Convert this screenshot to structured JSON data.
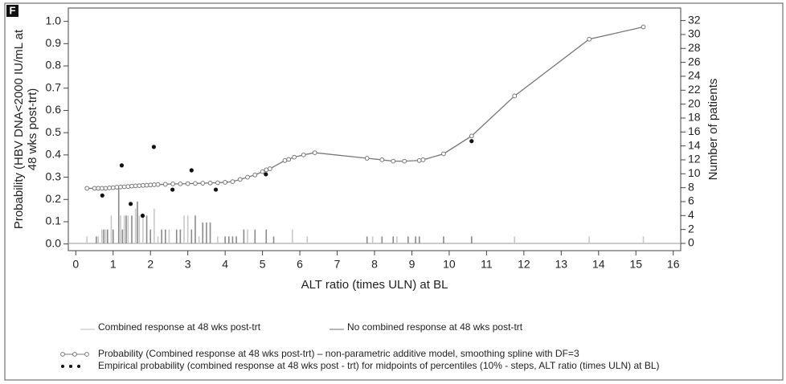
{
  "panel_label": "F",
  "chart_data": {
    "type": "combo",
    "x_label": "ALT ratio (times ULN) at BL",
    "y_label": [
      "Probability (HBV DNA<2000 IU/mL at",
      "48 wks post-trt)"
    ],
    "y2_label": "Number of patients",
    "xlim": [
      -0.2,
      16.2
    ],
    "xticks": [
      0,
      1,
      2,
      3,
      4,
      5,
      6,
      7,
      8,
      9,
      10,
      11,
      12,
      13,
      14,
      15,
      16
    ],
    "ylim": [
      -0.03,
      1.06
    ],
    "yticks": [
      {
        "value": 0,
        "label": "0.0"
      },
      0.1,
      0.2,
      0.3,
      0.4,
      0.5,
      0.6,
      0.7,
      0.8,
      0.9,
      {
        "value": 1,
        "label": "1.0"
      }
    ],
    "y2lim": [
      -1.04,
      33.8
    ],
    "y2ticks": [
      0,
      2,
      4,
      6,
      8,
      10,
      12,
      14,
      16,
      18,
      20,
      22,
      24,
      26,
      28,
      30,
      32
    ],
    "series": [
      {
        "name": "Combined response at 48 wks post-trt",
        "type": "bar",
        "axis": "y2",
        "color": "#c8c8c8",
        "x": [
          0.3,
          0.6,
          0.7,
          0.8,
          0.95,
          1.2,
          1.3,
          1.4,
          1.6,
          1.7,
          1.8,
          2.1,
          2.2,
          2.5,
          2.9,
          3.0,
          3.3,
          3.8,
          4.6,
          5.8,
          6.2,
          7.95,
          8.6,
          10.6,
          11.75,
          13.75,
          15.2
        ],
        "values": [
          1,
          1,
          2,
          2,
          4,
          4,
          4,
          4,
          5,
          4,
          4,
          5,
          1,
          2,
          4,
          4,
          1,
          1,
          2,
          2,
          1,
          1,
          1,
          1,
          1,
          1,
          1
        ]
      },
      {
        "name": "No combined response at 48 wks post-trt",
        "type": "bar",
        "axis": "y2",
        "color": "#8a8a8a",
        "x": [
          0.55,
          0.75,
          0.85,
          1.0,
          1.15,
          1.25,
          1.35,
          1.5,
          1.65,
          1.9,
          2.0,
          2.3,
          2.4,
          2.7,
          2.8,
          3.1,
          3.2,
          3.4,
          3.5,
          3.6,
          4.0,
          4.1,
          4.2,
          4.3,
          4.5,
          4.8,
          5.1,
          5.3,
          7.8,
          8.2,
          8.5,
          8.9,
          9.1,
          9.2,
          9.85,
          10.6
        ],
        "values": [
          1,
          2,
          2,
          2,
          8,
          2,
          4,
          4,
          6,
          4,
          2,
          2,
          2,
          2,
          2,
          2,
          4,
          3,
          3,
          3,
          1,
          1,
          1,
          1,
          2,
          2,
          2,
          1,
          1,
          1,
          1,
          1,
          1,
          1,
          1,
          1
        ]
      },
      {
        "name": "Probability (Combined response at 48 wks post-trt) – non-parametric additive model, smoothing spline with DF=3",
        "type": "line",
        "color": "#777777",
        "x": [
          0.3,
          0.5,
          0.6,
          0.7,
          0.8,
          0.9,
          1.0,
          1.1,
          1.2,
          1.3,
          1.4,
          1.5,
          1.6,
          1.7,
          1.8,
          1.9,
          2.0,
          2.1,
          2.2,
          2.4,
          2.6,
          2.8,
          3.0,
          3.2,
          3.4,
          3.6,
          3.8,
          4.0,
          4.2,
          4.4,
          4.6,
          4.8,
          5.0,
          5.1,
          5.2,
          5.6,
          5.7,
          5.85,
          6.1,
          6.4,
          7.8,
          8.2,
          8.5,
          8.8,
          9.2,
          9.3,
          9.85,
          10.6,
          11.75,
          13.75,
          15.2
        ],
        "values": [
          0.25,
          0.25,
          0.25,
          0.25,
          0.25,
          0.252,
          0.253,
          0.255,
          0.256,
          0.257,
          0.258,
          0.26,
          0.261,
          0.262,
          0.263,
          0.264,
          0.265,
          0.266,
          0.267,
          0.268,
          0.27,
          0.27,
          0.271,
          0.272,
          0.273,
          0.274,
          0.275,
          0.277,
          0.28,
          0.29,
          0.3,
          0.31,
          0.325,
          0.333,
          0.338,
          0.375,
          0.38,
          0.39,
          0.4,
          0.41,
          0.385,
          0.378,
          0.372,
          0.372,
          0.375,
          0.378,
          0.405,
          0.485,
          0.665,
          0.92,
          0.975
        ]
      },
      {
        "name": "Empirical probability (combined response at 48 wks post - trt) for midpoints of percentiles (10% - steps, ALT ratio (times ULN) at BL)",
        "type": "scatter",
        "color": "#111111",
        "x": [
          0.71,
          1.23,
          1.47,
          1.79,
          2.09,
          2.59,
          3.1,
          3.75,
          5.09,
          10.6
        ],
        "values": [
          0.218,
          0.353,
          0.18,
          0.127,
          0.436,
          0.244,
          0.331,
          0.244,
          0.313,
          0.462
        ]
      }
    ]
  }
}
